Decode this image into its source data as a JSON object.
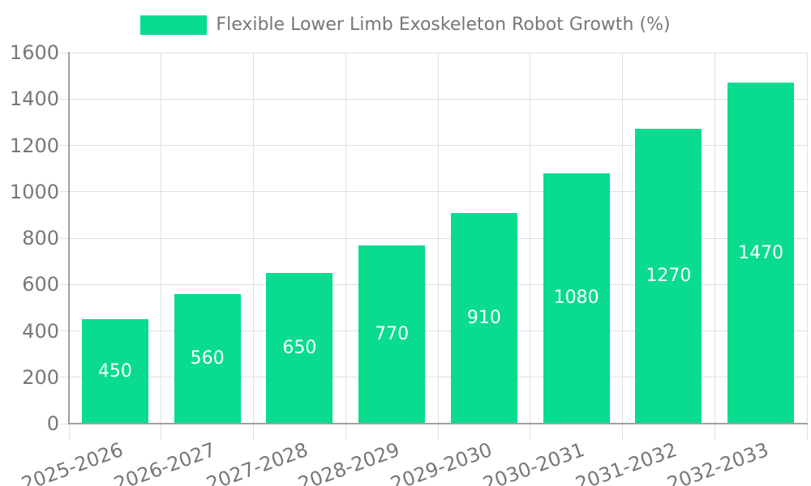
{
  "legend": {
    "label": "Flexible Lower Limb Exoskeleton Robot Growth (%)"
  },
  "colors": {
    "bar": "#09db8f",
    "axis_line": "#a0a0a0",
    "grid_line": "#e0e0e0",
    "tick_text": "#777777",
    "legend_text": "#777777",
    "value_text": "#ffffff",
    "background": "#ffffff"
  },
  "chart_data": {
    "type": "bar",
    "title": "Flexible Lower Limb Exoskeleton Robot Growth (%)",
    "categories": [
      "2025-2026",
      "2026-2027",
      "2027-2028",
      "2028-2029",
      "2029-2030",
      "2030-2031",
      "2031-2032",
      "2032-2033"
    ],
    "values": [
      450,
      560,
      650,
      770,
      910,
      1080,
      1270,
      1470
    ],
    "series_name": "Flexible Lower Limb Exoskeleton Robot Growth (%)",
    "xlabel": "",
    "ylabel": "",
    "ylim": [
      0,
      1600
    ],
    "ytick_interval": 200,
    "yticks": [
      0,
      200,
      400,
      600,
      800,
      1000,
      1200,
      1400,
      1600
    ],
    "grid": true,
    "category_split_lines": true,
    "legend_position": "top-center",
    "value_label_position": "inside-center",
    "x_tick_label_rotation_deg": -20,
    "bar_color": "#09db8f"
  }
}
